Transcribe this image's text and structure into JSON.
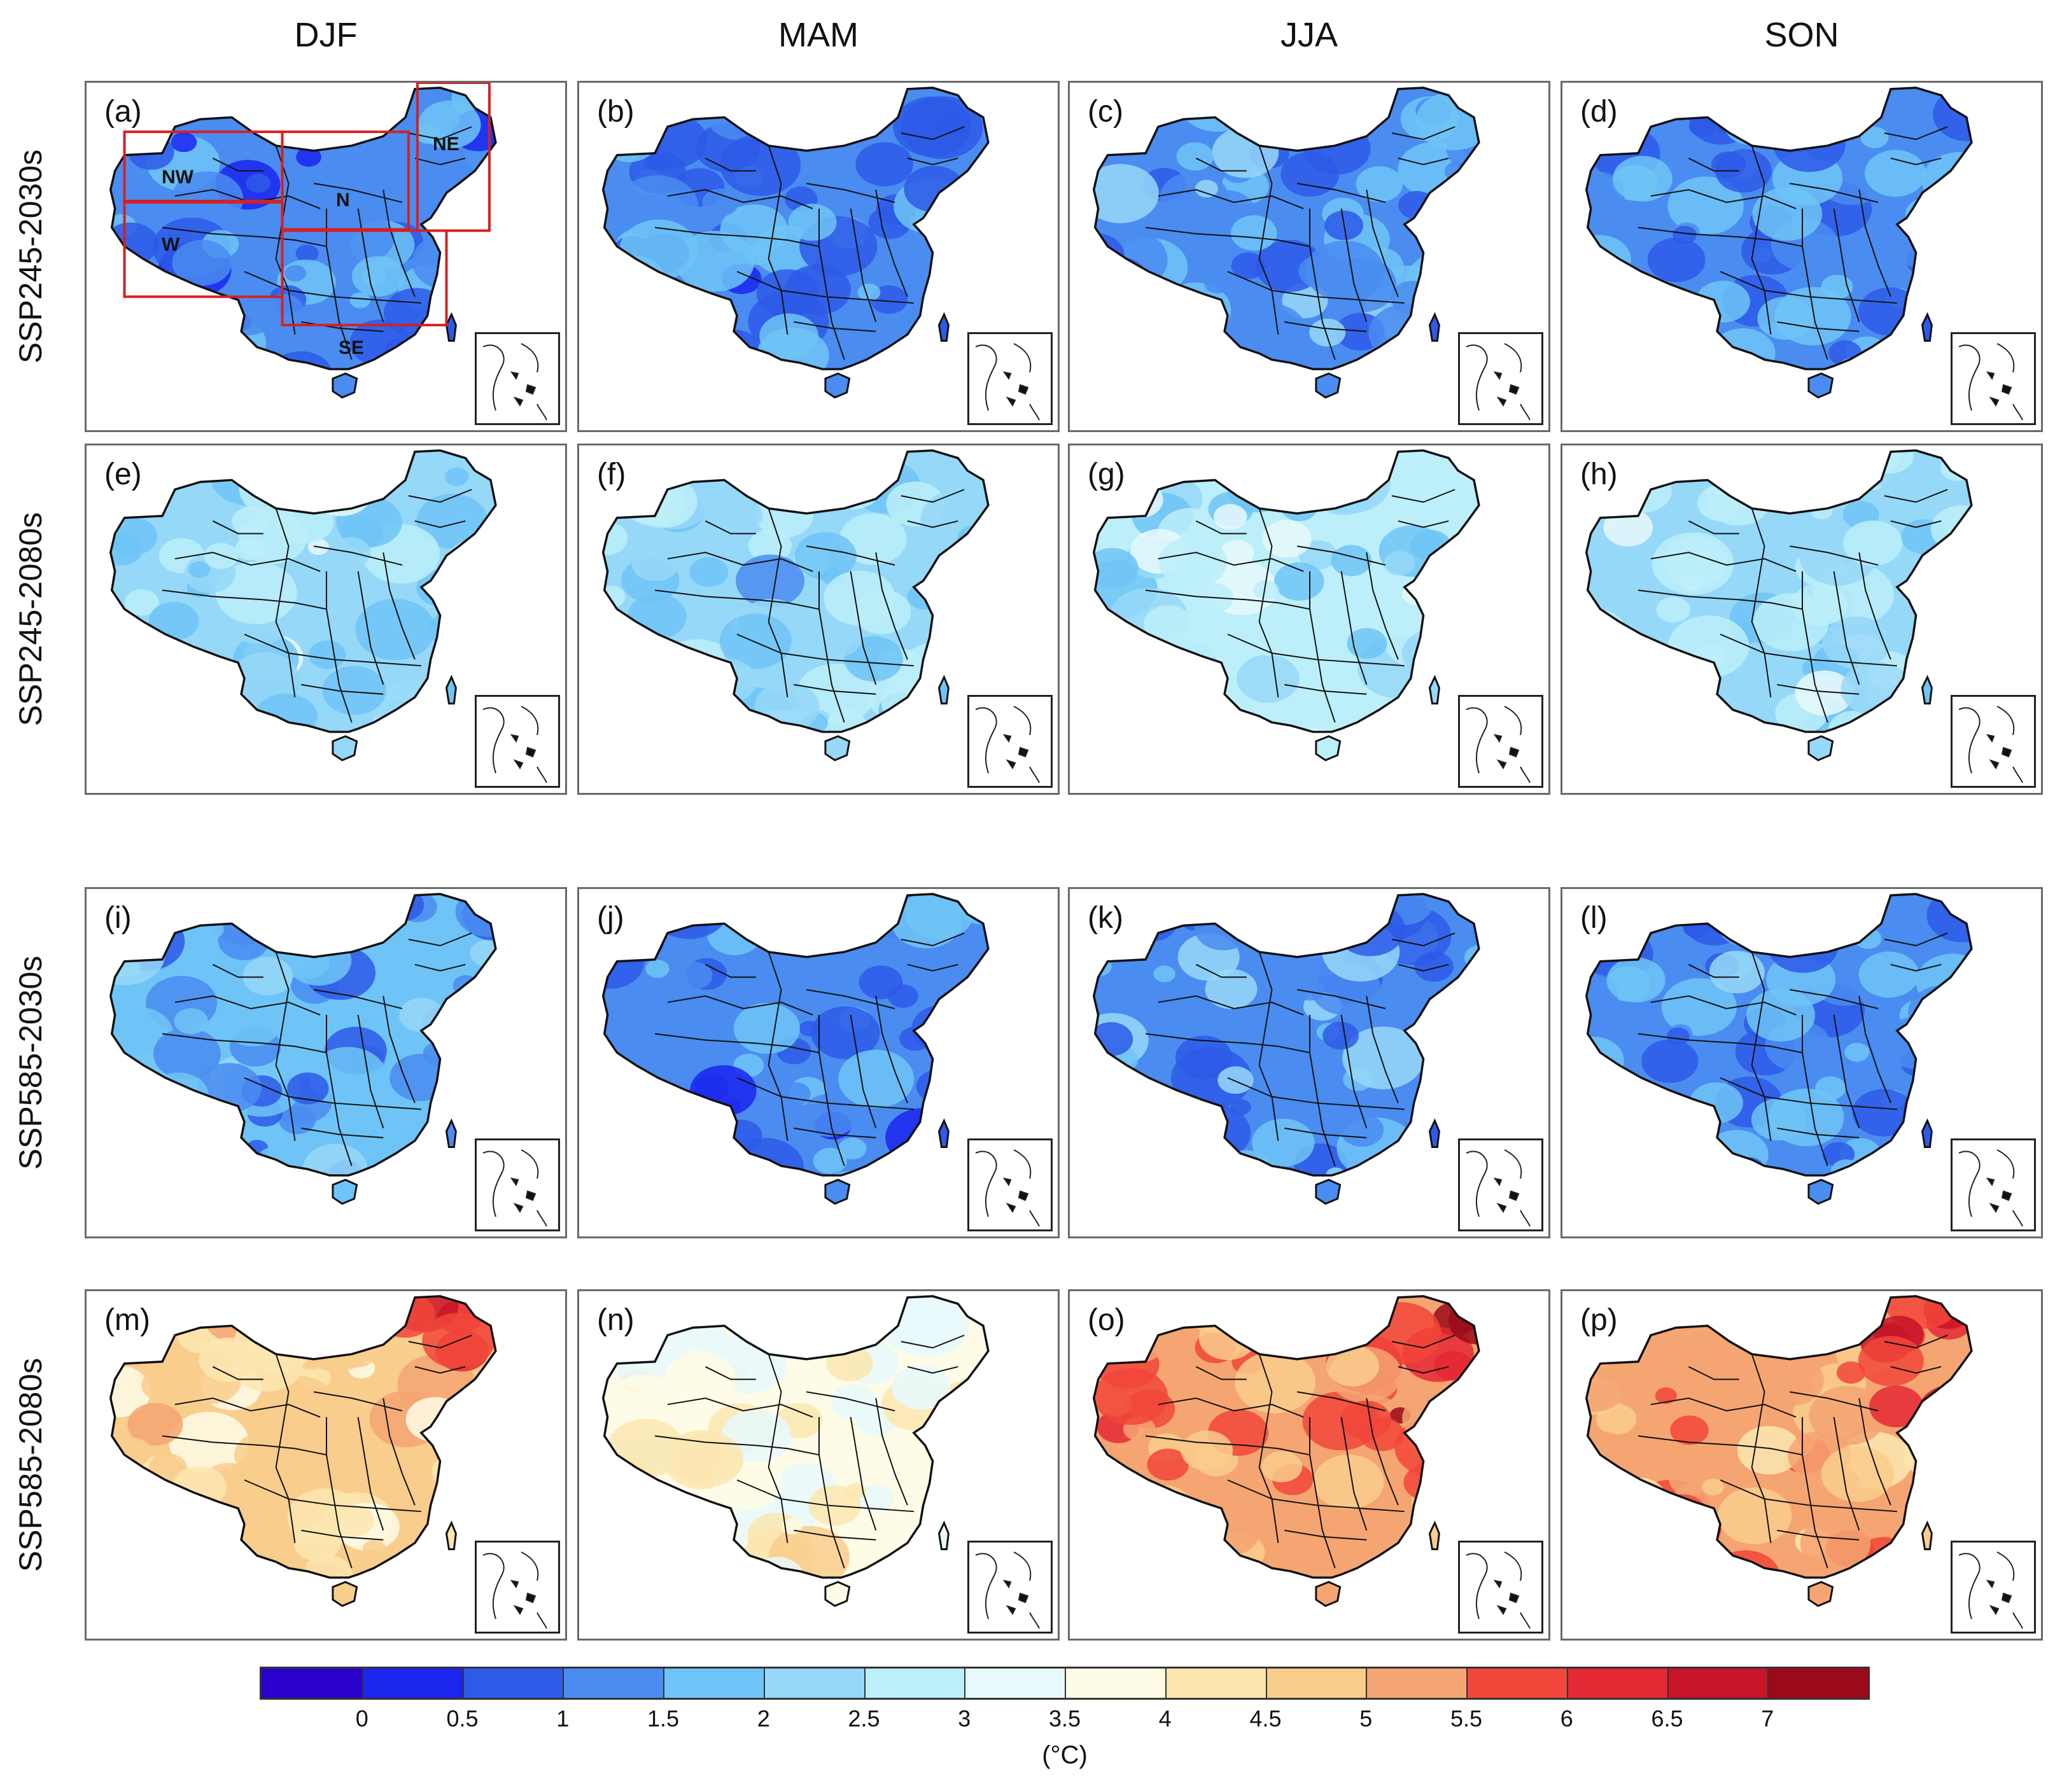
{
  "columns": [
    "DJF",
    "MAM",
    "JJA",
    "SON"
  ],
  "rows": [
    "SSP245-2030s",
    "SSP245-2080s",
    "SSP585-2030s",
    "SSP585-2080s"
  ],
  "panels": [
    {
      "label": "(a)",
      "level": 1.1,
      "regions": true
    },
    {
      "label": "(b)",
      "level": 1.2
    },
    {
      "label": "(c)",
      "level": 1.4
    },
    {
      "label": "(d)",
      "level": 1.3
    },
    {
      "label": "(e)",
      "level": 2.3
    },
    {
      "label": "(f)",
      "level": 2.2
    },
    {
      "label": "(g)",
      "level": 2.6
    },
    {
      "label": "(h)",
      "level": 2.4
    },
    {
      "label": "(i)",
      "level": 1.5
    },
    {
      "label": "(j)",
      "level": 1.2
    },
    {
      "label": "(k)",
      "level": 1.4
    },
    {
      "label": "(l)",
      "level": 1.3
    },
    {
      "label": "(m)",
      "level": 4.6
    },
    {
      "label": "(n)",
      "level": 3.8
    },
    {
      "label": "(o)",
      "level": 5.4
    },
    {
      "label": "(p)",
      "level": 5.0
    }
  ],
  "regions": [
    {
      "name": "NW"
    },
    {
      "name": "N"
    },
    {
      "name": "NE"
    },
    {
      "name": "W"
    },
    {
      "name": "SE"
    }
  ],
  "colorbar": {
    "colors": [
      "#2a00cc",
      "#1a26ee",
      "#2d5be8",
      "#4a8cf0",
      "#6ec4f6",
      "#96d8f8",
      "#bceff9",
      "#e7f9fb",
      "#fefbe6",
      "#fbe6b0",
      "#f9cd8c",
      "#f5a572",
      "#f1463a",
      "#e42834",
      "#c81428",
      "#9a0a18"
    ],
    "ticks": [
      "0",
      "0.5",
      "1",
      "1.5",
      "2",
      "2.5",
      "3",
      "3.5",
      "4",
      "4.5",
      "5",
      "5.5",
      "6",
      "6.5",
      "7"
    ],
    "units": "(°C)"
  },
  "colors": {
    "region_box": "#d62020",
    "border": "#111111",
    "frame": "#6a6a6a"
  }
}
